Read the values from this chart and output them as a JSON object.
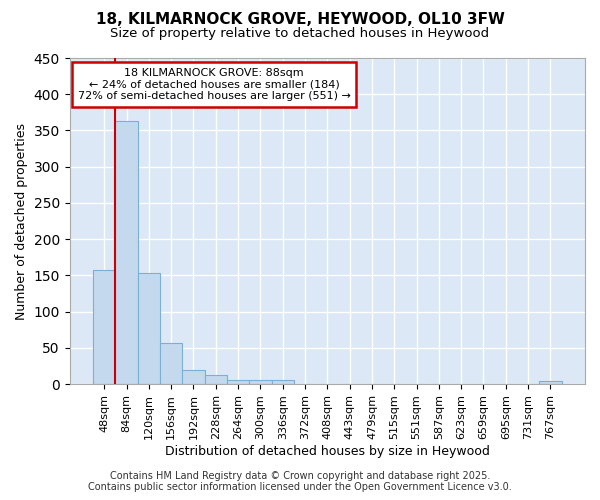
{
  "title_line1": "18, KILMARNOCK GROVE, HEYWOOD, OL10 3FW",
  "title_line2": "Size of property relative to detached houses in Heywood",
  "xlabel": "Distribution of detached houses by size in Heywood",
  "ylabel": "Number of detached properties",
  "categories": [
    "48sqm",
    "84sqm",
    "120sqm",
    "156sqm",
    "192sqm",
    "228sqm",
    "264sqm",
    "300sqm",
    "336sqm",
    "372sqm",
    "408sqm",
    "443sqm",
    "479sqm",
    "515sqm",
    "551sqm",
    "587sqm",
    "623sqm",
    "659sqm",
    "695sqm",
    "731sqm",
    "767sqm"
  ],
  "values": [
    157,
    363,
    153,
    57,
    20,
    13,
    6,
    5,
    5,
    0,
    0,
    0,
    0,
    0,
    0,
    0,
    0,
    0,
    0,
    0,
    4
  ],
  "bar_color": "#c5d9ee",
  "bar_edge_color": "#7bafd4",
  "vline_color": "#cc0000",
  "annotation_title": "18 KILMARNOCK GROVE: 88sqm",
  "annotation_line2": "← 24% of detached houses are smaller (184)",
  "annotation_line3": "72% of semi-detached houses are larger (551) →",
  "annotation_box_color": "#cc0000",
  "annotation_bg_color": "#ffffff",
  "ylim": [
    0,
    450
  ],
  "footer_line1": "Contains HM Land Registry data © Crown copyright and database right 2025.",
  "footer_line2": "Contains public sector information licensed under the Open Government Licence v3.0.",
  "plot_bg_color": "#dce8f5",
  "figure_bg_color": "#ffffff",
  "grid_color": "#ffffff",
  "title_fontsize": 11,
  "subtitle_fontsize": 9.5,
  "axis_label_fontsize": 9,
  "tick_fontsize": 8,
  "footer_fontsize": 7,
  "annotation_fontsize": 8
}
